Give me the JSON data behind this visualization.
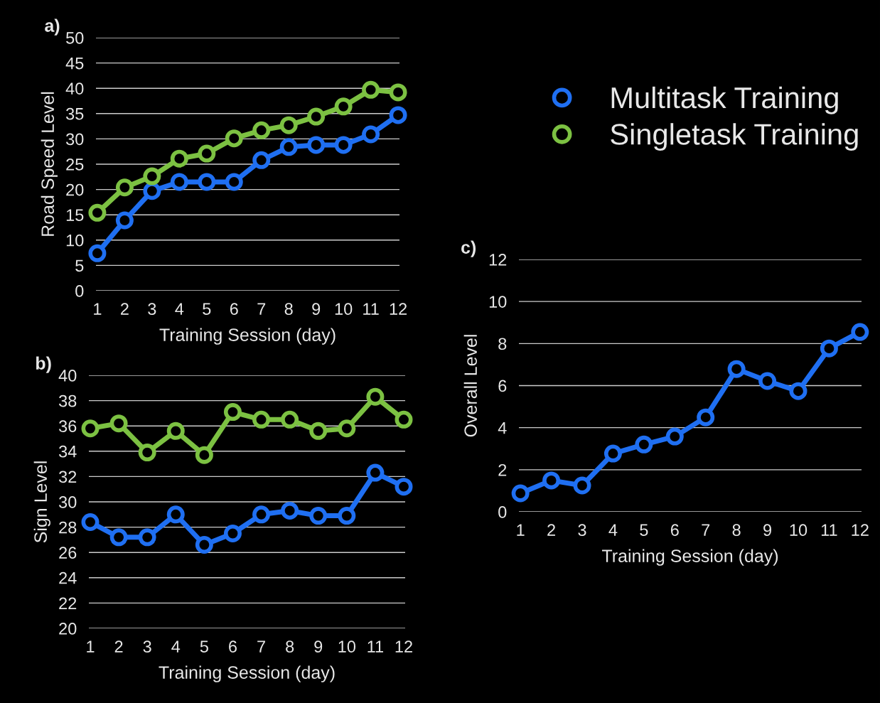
{
  "chart_data": [
    {
      "type": "line",
      "title": "a)",
      "xlabel": "Training Session (day)",
      "ylabel": "Road Speed Level",
      "categories": [
        "1",
        "2",
        "3",
        "4",
        "5",
        "6",
        "7",
        "8",
        "9",
        "10",
        "11",
        "12"
      ],
      "ylim": [
        0,
        50
      ],
      "yticks": [
        0,
        5,
        10,
        15,
        20,
        25,
        30,
        35,
        40,
        45,
        50
      ],
      "grid": "y",
      "legend": "right",
      "marker": "circle",
      "line_style": "solid",
      "series": [
        {
          "name": "Multitask Training",
          "color": "#1f6ff2",
          "values": [
            7.4,
            13.9,
            19.7,
            21.5,
            21.5,
            21.5,
            25.8,
            28.4,
            28.8,
            28.8,
            30.9,
            34.7
          ]
        },
        {
          "name": "Singletask Training",
          "color": "#7cc142",
          "values": [
            15.4,
            20.4,
            22.6,
            26.1,
            27.1,
            30.1,
            31.7,
            32.7,
            34.4,
            36.4,
            39.7,
            39.2
          ]
        }
      ]
    },
    {
      "type": "line",
      "title": "b)",
      "xlabel": "Training Session (day)",
      "ylabel": "Sign Level",
      "categories": [
        "1",
        "2",
        "3",
        "4",
        "5",
        "6",
        "7",
        "8",
        "9",
        "10",
        "11",
        "12"
      ],
      "ylim": [
        20,
        40
      ],
      "yticks": [
        20,
        22,
        24,
        26,
        28,
        30,
        32,
        34,
        36,
        38,
        40
      ],
      "grid": "y",
      "marker": "circle",
      "line_style": "solid",
      "series": [
        {
          "color": "#1f6ff2",
          "values": [
            28.4,
            27.2,
            27.2,
            29.0,
            26.6,
            27.5,
            29.0,
            29.3,
            28.9,
            28.9,
            32.3,
            31.2
          ]
        },
        {
          "color": "#7cc142",
          "values": [
            35.8,
            36.2,
            33.9,
            35.6,
            33.7,
            37.1,
            36.5,
            36.5,
            35.6,
            35.8,
            38.3,
            36.5
          ]
        }
      ]
    },
    {
      "type": "line",
      "title": "c)",
      "xlabel": "Training Session (day)",
      "ylabel": "Overall Level",
      "categories": [
        "1",
        "2",
        "3",
        "4",
        "5",
        "6",
        "7",
        "8",
        "9",
        "10",
        "11",
        "12"
      ],
      "ylim": [
        0,
        12
      ],
      "yticks": [
        0,
        2,
        4,
        6,
        8,
        10,
        12
      ],
      "grid": "y",
      "marker": "circle",
      "line_style": "solid",
      "series": [
        {
          "color": "#1f6ff2",
          "values": [
            0.88,
            1.49,
            1.25,
            2.77,
            3.2,
            3.58,
            4.49,
            6.79,
            6.22,
            5.74,
            7.77,
            8.55
          ]
        }
      ]
    }
  ]
}
